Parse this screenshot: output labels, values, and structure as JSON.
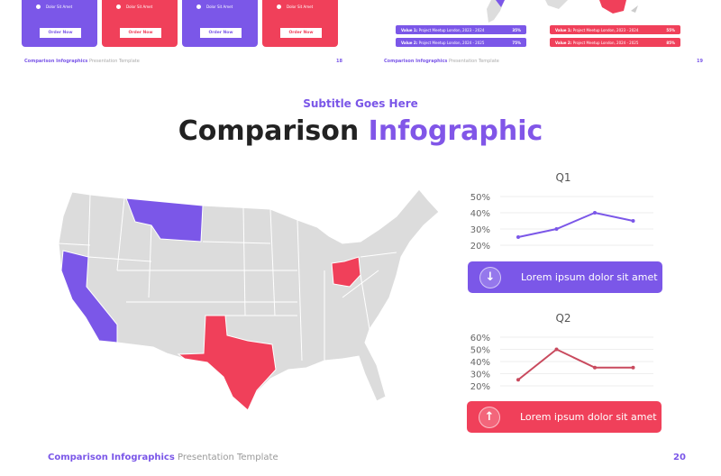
{
  "prev_slide_18": {
    "cards": [
      {
        "feature": "Dolor Sit Amet",
        "button": "Order Now",
        "color": "#7b57e8"
      },
      {
        "feature": "Dolor Sit Amet",
        "button": "Order Now",
        "color": "#f0405a"
      },
      {
        "feature": "Dolor Sit Amet",
        "button": "Order Now",
        "color": "#7b57e8"
      },
      {
        "feature": "Dolor Sit Amet",
        "button": "Order Now",
        "color": "#f0405a"
      }
    ],
    "footer_bold": "Comparison Infographics",
    "footer_rest": " Presentation Template",
    "page": "18"
  },
  "prev_slide_19": {
    "bars": [
      {
        "label": "Value 1:",
        "text": " Project Meetup London, 2023 - 2024",
        "value": "35%"
      },
      {
        "label": "Value 2:",
        "text": " Project Meetup London, 2024 - 2025",
        "value": "75%"
      },
      {
        "label": "Value 1:",
        "text": " Project Meetup London, 2023 - 2024",
        "value": "55%"
      },
      {
        "label": "Value 2:",
        "text": " Project Meetup London, 2024 - 2025",
        "value": "85%"
      }
    ],
    "footer_bold": "Comparison Infographics",
    "footer_rest": " Presentation Template",
    "page": "19"
  },
  "slide": {
    "subtitle": "Subtitle Goes Here",
    "title_main": "Comparison ",
    "title_accent": "Infographic",
    "map_highlights": {
      "purple": [
        "Montana",
        "California"
      ],
      "red": [
        "Texas",
        "Ohio"
      ]
    },
    "banner_q1": {
      "text": "Lorem ipsum dolor sit amet",
      "icon": "arrow-down-icon",
      "color": "#7b57e8"
    },
    "banner_q2": {
      "text": "Lorem ipsum dolor sit amet",
      "icon": "arrow-up-icon",
      "color": "#f0405a"
    },
    "footer_bold": "Comparison Infographics",
    "footer_rest": " Presentation Template",
    "page": "20"
  },
  "chart_data": [
    {
      "type": "line",
      "title": "Q1",
      "yticks": [
        "50%",
        "40%",
        "30%",
        "20%"
      ],
      "ylim": [
        20,
        50
      ],
      "values": [
        25,
        30,
        40,
        35
      ],
      "color": "#7b57e8",
      "grid": true
    },
    {
      "type": "line",
      "title": "Q2",
      "yticks": [
        "60%",
        "50%",
        "40%",
        "30%",
        "20%"
      ],
      "ylim": [
        20,
        60
      ],
      "values": [
        25,
        50,
        35,
        35
      ],
      "color": "#c94a5e",
      "grid": true
    }
  ]
}
